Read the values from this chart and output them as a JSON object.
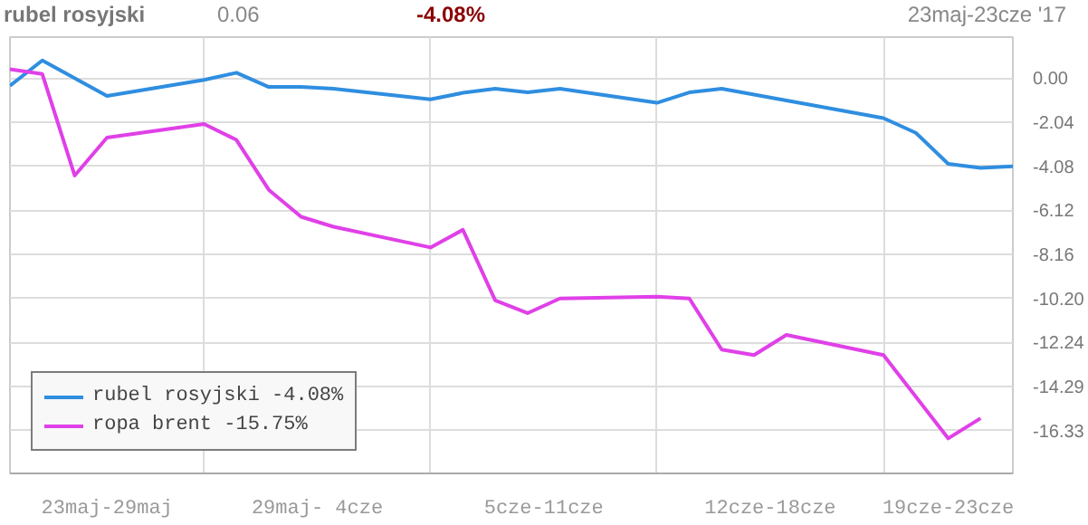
{
  "chart_data": {
    "type": "line",
    "title": "rubel rosyjski",
    "annotations": [
      "0.06",
      "-4.08%",
      "23maj-23cze '17"
    ],
    "x": [
      "2017-05-23",
      "2017-05-24",
      "2017-05-25",
      "2017-05-26",
      "2017-05-29",
      "2017-05-30",
      "2017-05-31",
      "2017-06-01",
      "2017-06-02",
      "2017-06-05",
      "2017-06-06",
      "2017-06-07",
      "2017-06-08",
      "2017-06-09",
      "2017-06-12",
      "2017-06-13",
      "2017-06-14",
      "2017-06-15",
      "2017-06-16",
      "2017-06-19",
      "2017-06-20",
      "2017-06-21",
      "2017-06-22",
      "2017-06-23"
    ],
    "series": [
      {
        "name": "rubel rosyjski -4.08%",
        "color": "#2f8ee0",
        "values": [
          -0.35,
          0.82,
          null,
          -0.82,
          -0.08,
          0.25,
          -0.41,
          -0.41,
          -0.49,
          -0.98,
          -0.68,
          -0.49,
          -0.66,
          -0.49,
          -1.14,
          -0.66,
          -0.49,
          null,
          null,
          -1.85,
          -2.53,
          -3.97,
          -4.16,
          -4.08
        ]
      },
      {
        "name": "ropa brent -15.75%",
        "color": "#e040e8",
        "values": [
          0.41,
          0.19,
          -4.51,
          -2.75,
          -2.12,
          -2.86,
          -5.17,
          -6.42,
          -6.88,
          -7.84,
          -7.02,
          -10.29,
          -10.88,
          -10.2,
          -10.12,
          -10.2,
          -12.57,
          -12.82,
          -11.89,
          -12.82,
          null,
          -16.68,
          -15.75,
          null
        ]
      }
    ],
    "xlim": [
      "2017-05-23",
      "2017-06-23"
    ],
    "xticks": [
      {
        "value": "2017-05-26",
        "label": "23maj-29maj"
      },
      {
        "value": "2017-05-29",
        "label": null
      },
      {
        "value": "2017-06-01T12:00",
        "label": "29maj- 4cze"
      },
      {
        "value": "2017-06-05",
        "label": null
      },
      {
        "value": "2017-06-08T12:00",
        "label": "5cze-11cze"
      },
      {
        "value": "2017-06-12",
        "label": null
      },
      {
        "value": "2017-06-15T12:00",
        "label": "12cze-18cze"
      },
      {
        "value": "2017-06-19",
        "label": null
      },
      {
        "value": "2017-06-21",
        "label": "19cze-23cze"
      }
    ],
    "ylim": [
      -18.3,
      1.9
    ],
    "yticks": [
      {
        "value": 0,
        "label": "0.00"
      },
      -2.04,
      -4.08,
      -6.12,
      -8.16,
      {
        "value": -10.2,
        "label": "-10.20"
      },
      -12.24,
      -14.29,
      -16.33
    ],
    "grid": true,
    "legend": "bottom left",
    "marker": "none",
    "line_style": "solid"
  }
}
